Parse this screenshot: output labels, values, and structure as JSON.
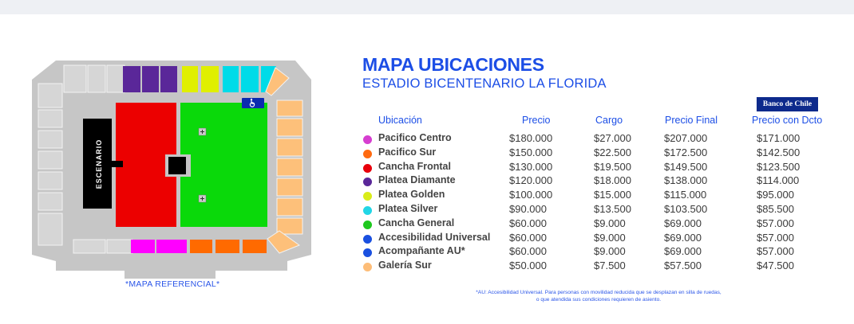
{
  "title": "MAPA UBICACIONES",
  "subtitle": "ESTADIO BICENTENARIO LA FLORIDA",
  "map": {
    "stage_label": "ESCENARIO",
    "caption": "*MAPA REFERENCIAL*",
    "accessibility_icon": "wheelchair-icon"
  },
  "bank_logo": "Banco de Chile",
  "table": {
    "headers": [
      "Ubicación",
      "Precio",
      "Cargo",
      "Precio Final",
      "Precio con Dcto"
    ],
    "rows": [
      {
        "name": "Pacifico Centro",
        "color": "#d63ed0",
        "precio": "$180.000",
        "cargo": "$27.000",
        "final": "$207.000",
        "dcto": "$171.000"
      },
      {
        "name": "Pacifico Sur",
        "color": "#ff6a10",
        "precio": "$150.000",
        "cargo": "$22.500",
        "final": "$172.500",
        "dcto": "$142.500"
      },
      {
        "name": "Cancha Frontal",
        "color": "#e8000b",
        "precio": "$130.000",
        "cargo": "$19.500",
        "final": "$149.500",
        "dcto": "$123.500"
      },
      {
        "name": "Platea Diamante",
        "color": "#5a2799",
        "precio": "$120.000",
        "cargo": "$18.000",
        "final": "$138.000",
        "dcto": "$114.000"
      },
      {
        "name": "Platea Golden",
        "color": "#d9ec1a",
        "precio": "$100.000",
        "cargo": "$15.000",
        "final": "$115.000",
        "dcto": "$95.000"
      },
      {
        "name": "Platea Silver",
        "color": "#22d6e6",
        "precio": "$90.000",
        "cargo": "$13.500",
        "final": "$103.500",
        "dcto": "$85.500"
      },
      {
        "name": "Cancha General",
        "color": "#1ec81e",
        "precio": "$60.000",
        "cargo": "$9.000",
        "final": "$69.000",
        "dcto": "$57.000"
      },
      {
        "name": "Accesibilidad Universal",
        "color": "#1a50e0",
        "precio": "$60.000",
        "cargo": "$9.000",
        "final": "$69.000",
        "dcto": "$57.000"
      },
      {
        "name": "Acompañante AU*",
        "color": "#1a50e0",
        "precio": "$60.000",
        "cargo": "$9.000",
        "final": "$69.000",
        "dcto": "$57.000"
      },
      {
        "name": "Galería Sur",
        "color": "#fdbd78",
        "precio": "$50.000",
        "cargo": "$7.500",
        "final": "$57.500",
        "dcto": "$47.500"
      }
    ]
  },
  "note_line1": "*AU: Accesibilidad Universal. Para personas con movilidad reducida que se desplazan en silla de ruedas,",
  "note_line2": "o que atendida sus condiciones requieren de asiento."
}
